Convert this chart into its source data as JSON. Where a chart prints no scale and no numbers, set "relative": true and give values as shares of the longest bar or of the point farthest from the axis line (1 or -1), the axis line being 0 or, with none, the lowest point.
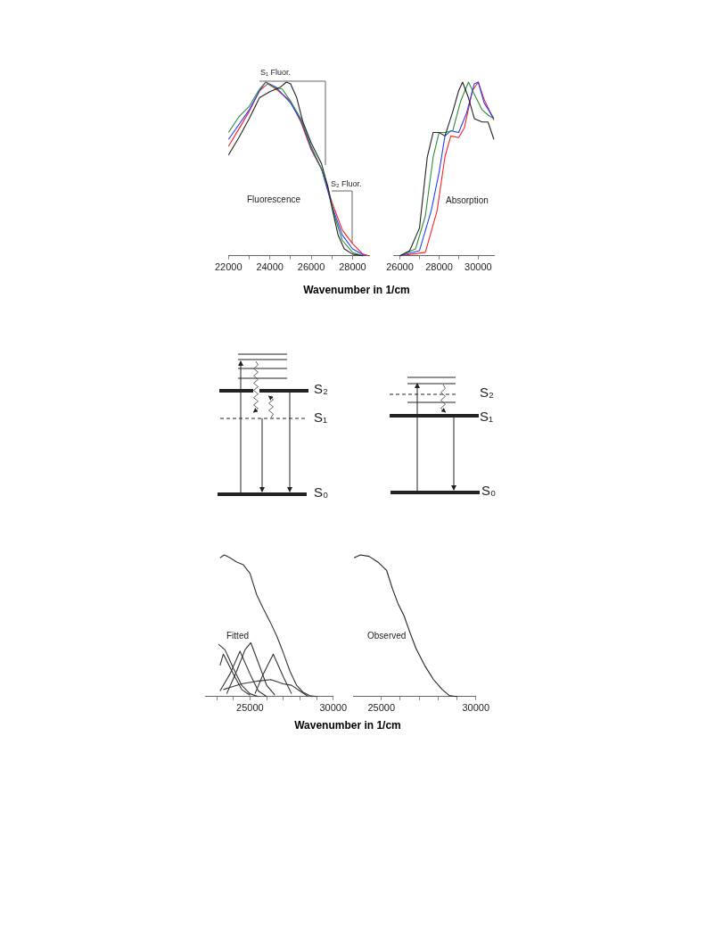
{
  "chart_data": [
    {
      "type": "line",
      "relative": true,
      "xlim": [
        22000,
        28800
      ],
      "xticks": [
        22000,
        {
          "value": 23000,
          "label": null
        },
        24000,
        {
          "value": 25000,
          "label": null
        },
        26000,
        {
          "value": 27000,
          "label": null
        },
        28000
      ],
      "xlabel": "Wavenumber in 1/cm",
      "annotations": [
        "S₁ Fluor.",
        "S₂ Fluor.",
        "Fluorescence"
      ],
      "series": [
        {
          "color": "#222222",
          "x": [
            22000,
            22500,
            23000,
            23500,
            24000,
            24500,
            24800,
            25000,
            25300,
            25600,
            26000,
            26500,
            26800,
            27000,
            27300,
            27600,
            28000,
            28500
          ],
          "values": [
            0.58,
            0.68,
            0.79,
            0.91,
            0.945,
            0.97,
            1.0,
            0.99,
            0.91,
            0.77,
            0.65,
            0.53,
            0.4,
            0.28,
            0.12,
            0.04,
            0.01,
            0
          ]
        },
        {
          "color": "#2e8b3a",
          "x": [
            22000,
            22500,
            23000,
            23500,
            23800,
            24200,
            24600,
            25000,
            25500,
            26000,
            26500,
            26800,
            27100,
            27500,
            28000,
            28500
          ],
          "values": [
            0.71,
            0.8,
            0.86,
            0.96,
            1.0,
            0.97,
            0.96,
            0.89,
            0.79,
            0.63,
            0.5,
            0.4,
            0.24,
            0.09,
            0.02,
            0
          ]
        },
        {
          "color": "#2040ff",
          "x": [
            22000,
            23000,
            23500,
            23800,
            24300,
            25000,
            25500,
            26000,
            26500,
            27000,
            27500,
            28000,
            28600
          ],
          "values": [
            0.67,
            0.84,
            0.95,
            1.0,
            0.97,
            0.88,
            0.78,
            0.62,
            0.5,
            0.29,
            0.12,
            0.04,
            0
          ]
        },
        {
          "color": "#ff2020",
          "x": [
            22000,
            22500,
            23000,
            23500,
            23900,
            24300,
            25000,
            25500,
            26000,
            26500,
            27000,
            27500,
            28000,
            28500,
            28800
          ],
          "values": [
            0.63,
            0.73,
            0.83,
            0.95,
            0.99,
            0.96,
            0.89,
            0.77,
            0.61,
            0.5,
            0.31,
            0.15,
            0.07,
            0.01,
            0
          ]
        }
      ]
    },
    {
      "type": "line",
      "relative": true,
      "xlim": [
        25700,
        30800
      ],
      "xticks": [
        26000,
        {
          "value": 27000,
          "label": null
        },
        28000,
        {
          "value": 29000,
          "label": null
        },
        30000
      ],
      "annotations": [
        "Absorption"
      ],
      "series": [
        {
          "color": "#222222",
          "x": [
            26000,
            26500,
            27000,
            27400,
            27700,
            28000,
            28300,
            28700,
            29000,
            29200,
            29500,
            29800,
            30200,
            30500,
            30800
          ],
          "values": [
            0,
            0.03,
            0.16,
            0.57,
            0.71,
            0.71,
            0.69,
            0.83,
            0.95,
            1.0,
            0.91,
            0.79,
            0.77,
            0.77,
            0.67
          ]
        },
        {
          "color": "#2e8b3a",
          "x": [
            26000,
            26800,
            27300,
            27700,
            28000,
            28300,
            28700,
            29100,
            29500,
            29800,
            30200,
            30500,
            30800
          ],
          "values": [
            0,
            0.04,
            0.23,
            0.57,
            0.71,
            0.71,
            0.72,
            0.89,
            1.0,
            0.93,
            0.84,
            0.81,
            0.79
          ]
        },
        {
          "color": "#2040ff",
          "x": [
            26000,
            27000,
            27600,
            28000,
            28300,
            28600,
            29000,
            29400,
            29800,
            30000,
            30300,
            30800
          ],
          "values": [
            0,
            0.03,
            0.26,
            0.48,
            0.69,
            0.72,
            0.71,
            0.82,
            0.99,
            1.0,
            0.88,
            0.79
          ]
        },
        {
          "color": "#ff2020",
          "x": [
            26000,
            27300,
            27900,
            28300,
            28600,
            29000,
            29300,
            29700,
            30000,
            30300,
            30800
          ],
          "values": [
            0,
            0.02,
            0.26,
            0.57,
            0.69,
            0.68,
            0.74,
            0.95,
            1.0,
            0.9,
            0.78
          ]
        }
      ]
    },
    {
      "type": "other",
      "annotations": [
        "S₂",
        "S₁",
        "S₀",
        "S₂",
        "S₁",
        "S₀"
      ]
    },
    {
      "type": "line",
      "relative": true,
      "xlim": [
        22300,
        30000
      ],
      "xticks": [
        {
          "value": 23000,
          "label": null
        },
        {
          "value": 24000,
          "label": null
        },
        25000,
        {
          "value": 26000,
          "label": null
        },
        {
          "value": 27000,
          "label": null
        },
        {
          "value": 28000,
          "label": null
        },
        {
          "value": 29000,
          "label": null
        },
        30000
      ],
      "xlabel": "Wavenumber in 1/cm",
      "annotations": [
        "Fitted"
      ],
      "series": [
        {
          "color": "#333333",
          "x": [
            23200,
            23450,
            23800,
            24200,
            24600,
            25000,
            25400,
            25800,
            26200,
            26600,
            27000,
            27400,
            27800,
            28200,
            28600,
            29000
          ],
          "values": [
            0.98,
            1.0,
            0.98,
            0.95,
            0.93,
            0.87,
            0.72,
            0.62,
            0.53,
            0.43,
            0.31,
            0.18,
            0.08,
            0.03,
            0.006,
            0
          ]
        },
        {
          "color": "#333333",
          "x": [
            23100,
            23500,
            24000,
            24500,
            25000,
            25500
          ],
          "values": [
            0.37,
            0.33,
            0.2,
            0.08,
            0.02,
            0
          ]
        },
        {
          "color": "#333333",
          "x": [
            23200,
            23400,
            24000,
            24500,
            25000
          ],
          "values": [
            0.22,
            0.3,
            0.16,
            0.05,
            0.01
          ]
        },
        {
          "color": "#333333",
          "x": [
            23200,
            23800,
            24400,
            25000,
            25500,
            26000
          ],
          "values": [
            0.04,
            0.16,
            0.32,
            0.16,
            0.04,
            0
          ]
        },
        {
          "color": "#333333",
          "x": [
            23600,
            24200,
            24700,
            25050,
            25500,
            26000,
            26500
          ],
          "values": [
            0.02,
            0.18,
            0.33,
            0.38,
            0.24,
            0.08,
            0.01
          ]
        },
        {
          "color": "#333333",
          "x": [
            25300,
            25800,
            26400,
            27000,
            27500
          ],
          "values": [
            0.02,
            0.16,
            0.3,
            0.14,
            0.02
          ]
        },
        {
          "color": "#333333",
          "x": [
            23400,
            24500,
            25500,
            26250,
            27000,
            27500,
            28000,
            28500
          ],
          "values": [
            0.05,
            0.09,
            0.11,
            0.12,
            0.09,
            0.08,
            0.04,
            0
          ]
        }
      ]
    },
    {
      "type": "line",
      "relative": true,
      "xlim": [
        23500,
        30000
      ],
      "xticks": [
        25000,
        {
          "value": 26000,
          "label": null
        },
        {
          "value": 27000,
          "label": null
        },
        {
          "value": 28000,
          "label": null
        },
        {
          "value": 29000,
          "label": null
        },
        30000
      ],
      "annotations": [
        "Observed"
      ],
      "series": [
        {
          "color": "#222222",
          "x": [
            23545,
            23890,
            24350,
            24810,
            25280,
            25590,
            25900,
            26200,
            26520,
            26830,
            27290,
            27760,
            28220,
            28610,
            29000
          ],
          "values": [
            0.98,
            1.0,
            0.99,
            0.95,
            0.89,
            0.76,
            0.65,
            0.57,
            0.45,
            0.34,
            0.22,
            0.12,
            0.05,
            0.006,
            0
          ]
        }
      ]
    }
  ]
}
